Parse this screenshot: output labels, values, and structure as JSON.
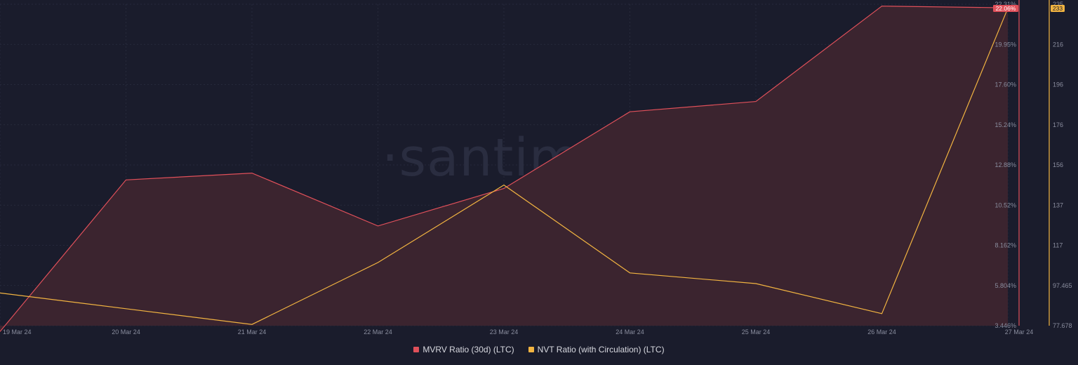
{
  "watermark": "·santiment·",
  "colors": {
    "background": "#1a1c2c",
    "grid": "#2b2e40",
    "mvrv": "#e0505a",
    "mvrv_fill": "#3b242f",
    "nvt": "#f2b441"
  },
  "chart_data": {
    "type": "line",
    "x": [
      "19 Mar 24",
      "20 Mar 24",
      "21 Mar 24",
      "22 Mar 24",
      "23 Mar 24",
      "24 Mar 24",
      "25 Mar 24",
      "26 Mar 24",
      "27 Mar 24"
    ],
    "series": [
      {
        "name": "MVRV Ratio (30d) (LTC)",
        "axis": "left",
        "area": true,
        "values": [
          3.1,
          12.0,
          12.4,
          9.3,
          11.5,
          16.0,
          16.6,
          22.2,
          22.1
        ],
        "last_value_label": "22.06%"
      },
      {
        "name": "NVT Ratio (with Circulation) (LTC)",
        "axis": "right",
        "area": false,
        "values": [
          93.7,
          86.0,
          78.3,
          108.6,
          146.5,
          103.5,
          98.3,
          83.6,
          233
        ],
        "last_value_label": "233"
      }
    ],
    "y_left": {
      "ticks": [
        "3.446%",
        "5.804%",
        "8.162%",
        "10.52%",
        "12.88%",
        "15.24%",
        "17.60%",
        "19.95%",
        "22.31%"
      ],
      "range": [
        3.446,
        22.31
      ]
    },
    "y_right": {
      "ticks": [
        "77.678",
        "97.465",
        "117",
        "137",
        "156",
        "176",
        "196",
        "216",
        "235"
      ],
      "range": [
        77.678,
        235.0
      ]
    },
    "grid": true,
    "legend_position": "bottom-center"
  }
}
